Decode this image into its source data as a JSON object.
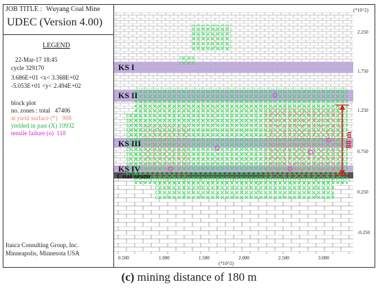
{
  "header": {
    "job_title_label": "JOB TITLE :",
    "job_title": "Wuyang Coal Mine",
    "version": "UDEC (Version 4.00)"
  },
  "legend": {
    "heading": "LEGEND",
    "date": "22-Mar-17  18:45",
    "cycle": "cycle 329170",
    "x_range": "3.686E+01 <x<  3.368E+02",
    "y_range": "-5.053E+01 <y<  2.494E+02",
    "block_plot": "block plot",
    "zones_label": "no. zones : total",
    "zones_total": "47406",
    "yield_surface_label": "at yield surface (*)",
    "yield_surface_value": "908",
    "yielded_past_label": "yielded in past  (X)",
    "yielded_past_value": "10932",
    "tensile_label": "tensile failure  (o)",
    "tensile_value": "110"
  },
  "credits": {
    "line1": "Itasca Consulting Group, Inc.",
    "line2": "Minneapolis, Minnesota  USA"
  },
  "axes": {
    "y_multiplier": "(*10^2)",
    "x_multiplier": "(*10^2)",
    "y_ticks": [
      "2.250",
      "1.750",
      "1.250",
      "0.750",
      "0.250",
      "-0.250"
    ],
    "x_ticks": [
      "0.500",
      "1.000",
      "1.500",
      "2.000",
      "2.500",
      "3.000"
    ]
  },
  "strata": {
    "ks1": "KS I",
    "ks2": "KS II",
    "ks3": "KS III",
    "ks4": "KS IV",
    "coal": "Coal seam",
    "height": "88 m"
  },
  "colors": {
    "key_stratum": "#b9a2d8",
    "plastic": "#33dd55",
    "yield": "#f07a7a",
    "tensile": "#e040e0",
    "arrow": "#d62020",
    "coal": "#555555"
  },
  "caption": {
    "label": "(c)",
    "text": " mining distance of 180 m"
  }
}
